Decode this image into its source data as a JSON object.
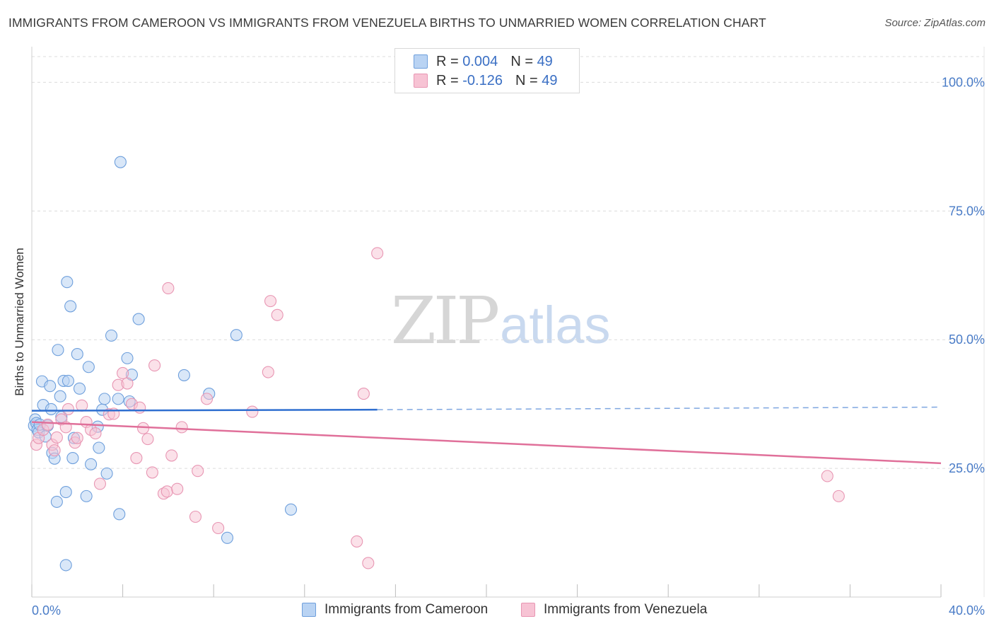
{
  "header": {
    "title": "IMMIGRANTS FROM CAMEROON VS IMMIGRANTS FROM VENEZUELA BIRTHS TO UNMARRIED WOMEN CORRELATION CHART",
    "source": "Source: ZipAtlas.com"
  },
  "watermark": {
    "zip": "ZIP",
    "atlas": "atlas"
  },
  "legend": {
    "r_label": "R =",
    "n_label": "N =",
    "series": [
      {
        "r": "0.004",
        "n": "49"
      },
      {
        "r": "-0.126",
        "n": "49"
      }
    ]
  },
  "colors": {
    "cameroon_fill": "#b9d3f3",
    "cameroon_stroke": "#6e9fdc",
    "cameroon_line": "#2f6fd0",
    "venezuela_fill": "#f7c3d4",
    "venezuela_stroke": "#e896b3",
    "venezuela_line": "#e0709a"
  },
  "chart_data": {
    "type": "scatter",
    "title": "IMMIGRANTS FROM CAMEROON VS IMMIGRANTS FROM VENEZUELA BIRTHS TO UNMARRIED WOMEN CORRELATION CHART",
    "xlabel": "",
    "ylabel": "Births to Unmarried Women",
    "xlim": [
      0,
      40
    ],
    "ylim": [
      0,
      105
    ],
    "x_tick_labels": [
      "0.0%",
      "40.0%"
    ],
    "y_ticks": [
      25,
      50,
      75,
      100
    ],
    "y_tick_labels": [
      "25.0%",
      "50.0%",
      "75.0%",
      "100.0%"
    ],
    "series": [
      {
        "name": "Immigrants from Cameroon",
        "r": 0.004,
        "n": 49,
        "trend": {
          "x": [
            0,
            15.2
          ],
          "y": [
            36.2,
            36.4
          ],
          "dashed_to": [
            40,
            36.9
          ]
        },
        "points": [
          [
            0.1,
            33.3
          ],
          [
            0.15,
            34.5
          ],
          [
            0.2,
            33.8
          ],
          [
            0.25,
            32.5
          ],
          [
            0.3,
            32.0
          ],
          [
            0.35,
            33.5
          ],
          [
            0.45,
            41.9
          ],
          [
            0.5,
            37.3
          ],
          [
            0.6,
            31.2
          ],
          [
            0.7,
            33.3
          ],
          [
            0.8,
            41.0
          ],
          [
            0.85,
            36.5
          ],
          [
            0.9,
            28.0
          ],
          [
            1.0,
            26.9
          ],
          [
            1.15,
            48.0
          ],
          [
            1.25,
            39.0
          ],
          [
            1.3,
            35.0
          ],
          [
            1.4,
            42.0
          ],
          [
            1.5,
            20.4
          ],
          [
            1.55,
            61.2
          ],
          [
            1.6,
            42.0
          ],
          [
            1.7,
            56.5
          ],
          [
            1.8,
            27.0
          ],
          [
            1.85,
            30.9
          ],
          [
            2.0,
            47.2
          ],
          [
            2.1,
            40.5
          ],
          [
            2.4,
            19.6
          ],
          [
            2.5,
            44.7
          ],
          [
            2.6,
            25.8
          ],
          [
            2.9,
            33.1
          ],
          [
            2.95,
            29.0
          ],
          [
            3.1,
            36.4
          ],
          [
            3.2,
            38.5
          ],
          [
            3.3,
            24.0
          ],
          [
            3.5,
            50.8
          ],
          [
            3.8,
            38.5
          ],
          [
            3.85,
            16.1
          ],
          [
            3.9,
            84.5
          ],
          [
            4.2,
            46.4
          ],
          [
            4.3,
            38.0
          ],
          [
            4.4,
            43.2
          ],
          [
            4.7,
            54.0
          ],
          [
            6.7,
            43.1
          ],
          [
            7.8,
            39.5
          ],
          [
            8.6,
            11.5
          ],
          [
            9.0,
            50.9
          ],
          [
            11.4,
            17.0
          ],
          [
            1.5,
            6.2
          ],
          [
            1.1,
            18.5
          ]
        ]
      },
      {
        "name": "Immigrants from Venezuela",
        "r": -0.126,
        "n": 49,
        "trend": {
          "x": [
            0,
            40
          ],
          "y": [
            34.0,
            26.0
          ]
        },
        "points": [
          [
            0.2,
            29.6
          ],
          [
            0.3,
            30.9
          ],
          [
            0.5,
            32.5
          ],
          [
            0.7,
            33.5
          ],
          [
            0.9,
            29.6
          ],
          [
            1.0,
            28.5
          ],
          [
            1.1,
            31.0
          ],
          [
            1.3,
            34.5
          ],
          [
            1.5,
            33.0
          ],
          [
            1.6,
            36.5
          ],
          [
            1.9,
            30.0
          ],
          [
            2.0,
            30.9
          ],
          [
            2.2,
            37.2
          ],
          [
            2.4,
            34.0
          ],
          [
            2.6,
            32.5
          ],
          [
            2.8,
            31.8
          ],
          [
            3.0,
            22.0
          ],
          [
            3.4,
            35.5
          ],
          [
            3.6,
            35.6
          ],
          [
            3.8,
            41.2
          ],
          [
            4.0,
            43.5
          ],
          [
            4.2,
            41.5
          ],
          [
            4.4,
            37.5
          ],
          [
            4.6,
            27.0
          ],
          [
            4.75,
            36.8
          ],
          [
            4.9,
            32.8
          ],
          [
            5.1,
            30.7
          ],
          [
            5.3,
            24.2
          ],
          [
            5.4,
            45.0
          ],
          [
            5.8,
            20.1
          ],
          [
            5.95,
            20.5
          ],
          [
            6.0,
            60.0
          ],
          [
            6.15,
            27.5
          ],
          [
            6.4,
            21.0
          ],
          [
            6.6,
            33.0
          ],
          [
            7.2,
            15.6
          ],
          [
            7.3,
            24.5
          ],
          [
            7.7,
            38.5
          ],
          [
            8.2,
            13.4
          ],
          [
            9.7,
            36.0
          ],
          [
            10.4,
            43.7
          ],
          [
            10.5,
            57.5
          ],
          [
            10.8,
            54.8
          ],
          [
            14.3,
            10.8
          ],
          [
            14.6,
            39.5
          ],
          [
            14.8,
            6.6
          ],
          [
            15.2,
            66.8
          ],
          [
            35.0,
            23.5
          ],
          [
            35.5,
            19.6
          ]
        ]
      }
    ]
  }
}
